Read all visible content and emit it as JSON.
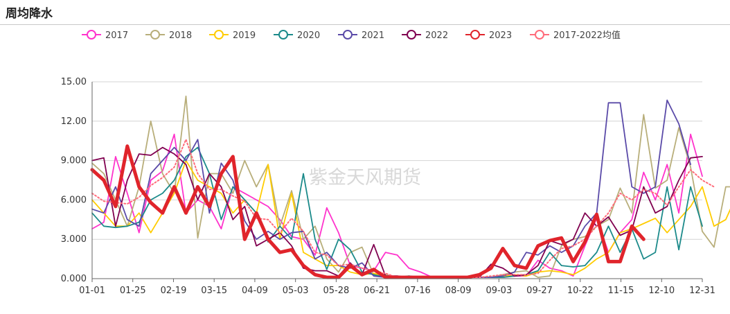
{
  "page": {
    "title": "周均降水"
  },
  "watermark": "紫金天风期货",
  "chart_data": {
    "type": "line",
    "title": "",
    "xlabel": "",
    "ylabel": "",
    "ylim": [
      0,
      15
    ],
    "yticks": [
      "0.000",
      "3.000",
      "6.000",
      "9.000",
      "12.00",
      "15.00"
    ],
    "xtick_labels": [
      "01-01",
      "01-25",
      "02-19",
      "03-15",
      "04-09",
      "05-03",
      "05-28",
      "06-21",
      "07-16",
      "08-09",
      "09-03",
      "09-27",
      "10-22",
      "11-15",
      "12-10",
      "12-31"
    ],
    "x_points": 53,
    "grid": "horizontal",
    "legend_position": "top",
    "series": [
      {
        "name": "2017",
        "color": "#ff33cc",
        "width": 1.8,
        "dash": false,
        "values": [
          3.8,
          4.3,
          9.3,
          6.5,
          3.5,
          7.5,
          8.2,
          11.0,
          5.0,
          6.0,
          5.5,
          3.8,
          7.0,
          6.5,
          6.0,
          5.5,
          4.5,
          3.2,
          3.0,
          1.8,
          5.4,
          3.5,
          1.0,
          0.8,
          0.6,
          2.0,
          1.8,
          0.8,
          0.5,
          0.1,
          0.1,
          0.1,
          0.1,
          0.1,
          0.1,
          0.1,
          0.2,
          0.2,
          1.4,
          0.8,
          0.6,
          0.2,
          2.5,
          4.6,
          2.0,
          3.5,
          4.5,
          8.1,
          6.0,
          8.7,
          5.0,
          11.0,
          7.8
        ]
      },
      {
        "name": "2018",
        "color": "#b8ae7a",
        "width": 1.8,
        "dash": false,
        "values": [
          8.8,
          8.0,
          6.0,
          4.0,
          7.0,
          12.0,
          8.0,
          6.5,
          13.9,
          3.1,
          8.0,
          8.0,
          6.5,
          9.0,
          7.0,
          8.7,
          4.0,
          6.7,
          3.0,
          4.0,
          1.5,
          0.5,
          2.0,
          2.4,
          0.3,
          0.3,
          0.1,
          0.1,
          0.1,
          0.1,
          0.1,
          0.1,
          0.1,
          0.1,
          0.1,
          0.3,
          0.5,
          0.6,
          0.1,
          0.2,
          2.5,
          3.0,
          3.2,
          4.0,
          4.5,
          6.9,
          5.0,
          12.5,
          6.9,
          7.5,
          11.5,
          8.5,
          3.6,
          2.4,
          7.0,
          7.0
        ]
      },
      {
        "name": "2019",
        "color": "#ffcc00",
        "width": 1.8,
        "dash": false,
        "values": [
          6.0,
          5.0,
          4.0,
          4.0,
          5.0,
          3.5,
          5.0,
          6.5,
          9.0,
          7.5,
          7.0,
          6.5,
          5.0,
          6.0,
          5.0,
          8.7,
          3.0,
          6.5,
          2.0,
          1.5,
          1.0,
          1.0,
          0.5,
          0.3,
          0.4,
          0.2,
          0.1,
          0.1,
          0.1,
          0.1,
          0.1,
          0.1,
          0.1,
          0.1,
          0.1,
          0.2,
          0.3,
          0.2,
          0.5,
          0.6,
          0.5,
          0.3,
          0.8,
          1.5,
          2.0,
          3.5,
          3.8,
          4.2,
          4.6,
          3.5,
          4.5,
          5.5,
          7.0,
          4.0,
          4.5,
          6.5
        ]
      },
      {
        "name": "2020",
        "color": "#1b8a8a",
        "width": 1.8,
        "dash": false,
        "values": [
          5.0,
          4.0,
          3.9,
          4.0,
          4.3,
          6.0,
          6.5,
          7.5,
          9.3,
          10.0,
          8.0,
          4.5,
          7.0,
          6.0,
          5.0,
          2.8,
          4.0,
          3.0,
          8.0,
          3.0,
          0.7,
          3.0,
          2.2,
          0.5,
          0.3,
          0.1,
          0.1,
          0.2,
          0.1,
          0.1,
          0.1,
          0.1,
          0.1,
          0.1,
          0.1,
          0.1,
          0.2,
          0.3,
          0.6,
          2.0,
          1.0,
          0.9,
          1.0,
          2.0,
          4.0,
          2.0,
          3.8,
          1.5,
          2.0,
          7.0,
          2.2,
          7.0,
          4.0
        ]
      },
      {
        "name": "2021",
        "color": "#5a4aa8",
        "width": 1.8,
        "dash": false,
        "values": [
          5.3,
          5.0,
          7.0,
          4.5,
          4.0,
          8.0,
          9.0,
          10.0,
          9.0,
          10.6,
          5.0,
          8.8,
          7.5,
          4.4,
          3.0,
          3.6,
          3.0,
          3.5,
          3.6,
          1.5,
          2.0,
          1.0,
          0.8,
          1.2,
          0.2,
          0.1,
          0.1,
          0.1,
          0.1,
          0.1,
          0.1,
          0.1,
          0.1,
          0.1,
          0.1,
          0.2,
          0.5,
          2.0,
          1.8,
          2.5,
          2.0,
          2.5,
          4.0,
          5.0,
          13.4,
          13.4,
          7.0,
          6.5,
          7.0,
          13.6,
          11.8,
          8.7
        ]
      },
      {
        "name": "2022",
        "color": "#800050",
        "width": 1.8,
        "dash": false,
        "values": [
          9.0,
          9.2,
          4.0,
          7.5,
          9.5,
          9.4,
          10.0,
          9.5,
          8.7,
          6.0,
          8.0,
          7.0,
          4.5,
          5.5,
          2.5,
          3.0,
          3.5,
          2.5,
          0.8,
          0.6,
          0.6,
          0.2,
          1.2,
          0.3,
          2.6,
          0.2,
          0.2,
          0.1,
          0.1,
          0.1,
          0.1,
          0.1,
          0.1,
          0.1,
          1.1,
          0.8,
          0.2,
          0.3,
          1.0,
          2.9,
          2.6,
          3.0,
          5.0,
          4.0,
          4.7,
          3.3,
          3.7,
          7.0,
          5.0,
          5.5,
          7.5,
          9.2,
          9.3
        ]
      },
      {
        "name": "2023",
        "color": "#e0242b",
        "width": 5,
        "dash": false,
        "values": [
          8.3,
          7.5,
          5.5,
          10.1,
          7.0,
          5.8,
          5.0,
          7.0,
          5.0,
          7.0,
          5.5,
          8.0,
          9.3,
          3.0,
          5.0,
          3.0,
          2.0,
          2.2,
          1.0,
          0.3,
          0.1,
          0.1,
          1.0,
          0.3,
          0.7,
          0.1,
          0.1,
          0.1,
          0.1,
          0.1,
          0.1,
          0.1,
          0.1,
          0.3,
          0.8,
          2.3,
          1.0,
          0.8,
          2.5,
          2.9,
          3.1,
          1.3,
          2.8,
          4.9,
          1.3,
          1.3,
          4.0,
          3.0
        ]
      },
      {
        "name": "2017-2022均值",
        "color": "#ff6b7a",
        "width": 2,
        "dash": true,
        "values": [
          6.5,
          5.9,
          5.8,
          5.7,
          6.2,
          7.1,
          7.7,
          8.5,
          10.6,
          8.0,
          6.8,
          6.8,
          6.3,
          5.9,
          4.6,
          4.5,
          3.5,
          4.6,
          3.6,
          2.0,
          1.8,
          1.0,
          1.1,
          0.8,
          0.6,
          0.4,
          0.1,
          0.1,
          0.1,
          0.1,
          0.1,
          0.1,
          0.1,
          0.1,
          0.2,
          0.3,
          0.3,
          0.3,
          0.4,
          1.4,
          2.3,
          2.5,
          3.0,
          4.0,
          5.0,
          6.5,
          6.0,
          6.8,
          6.5,
          5.6,
          7.0,
          8.3,
          7.5,
          7.0
        ]
      }
    ]
  }
}
